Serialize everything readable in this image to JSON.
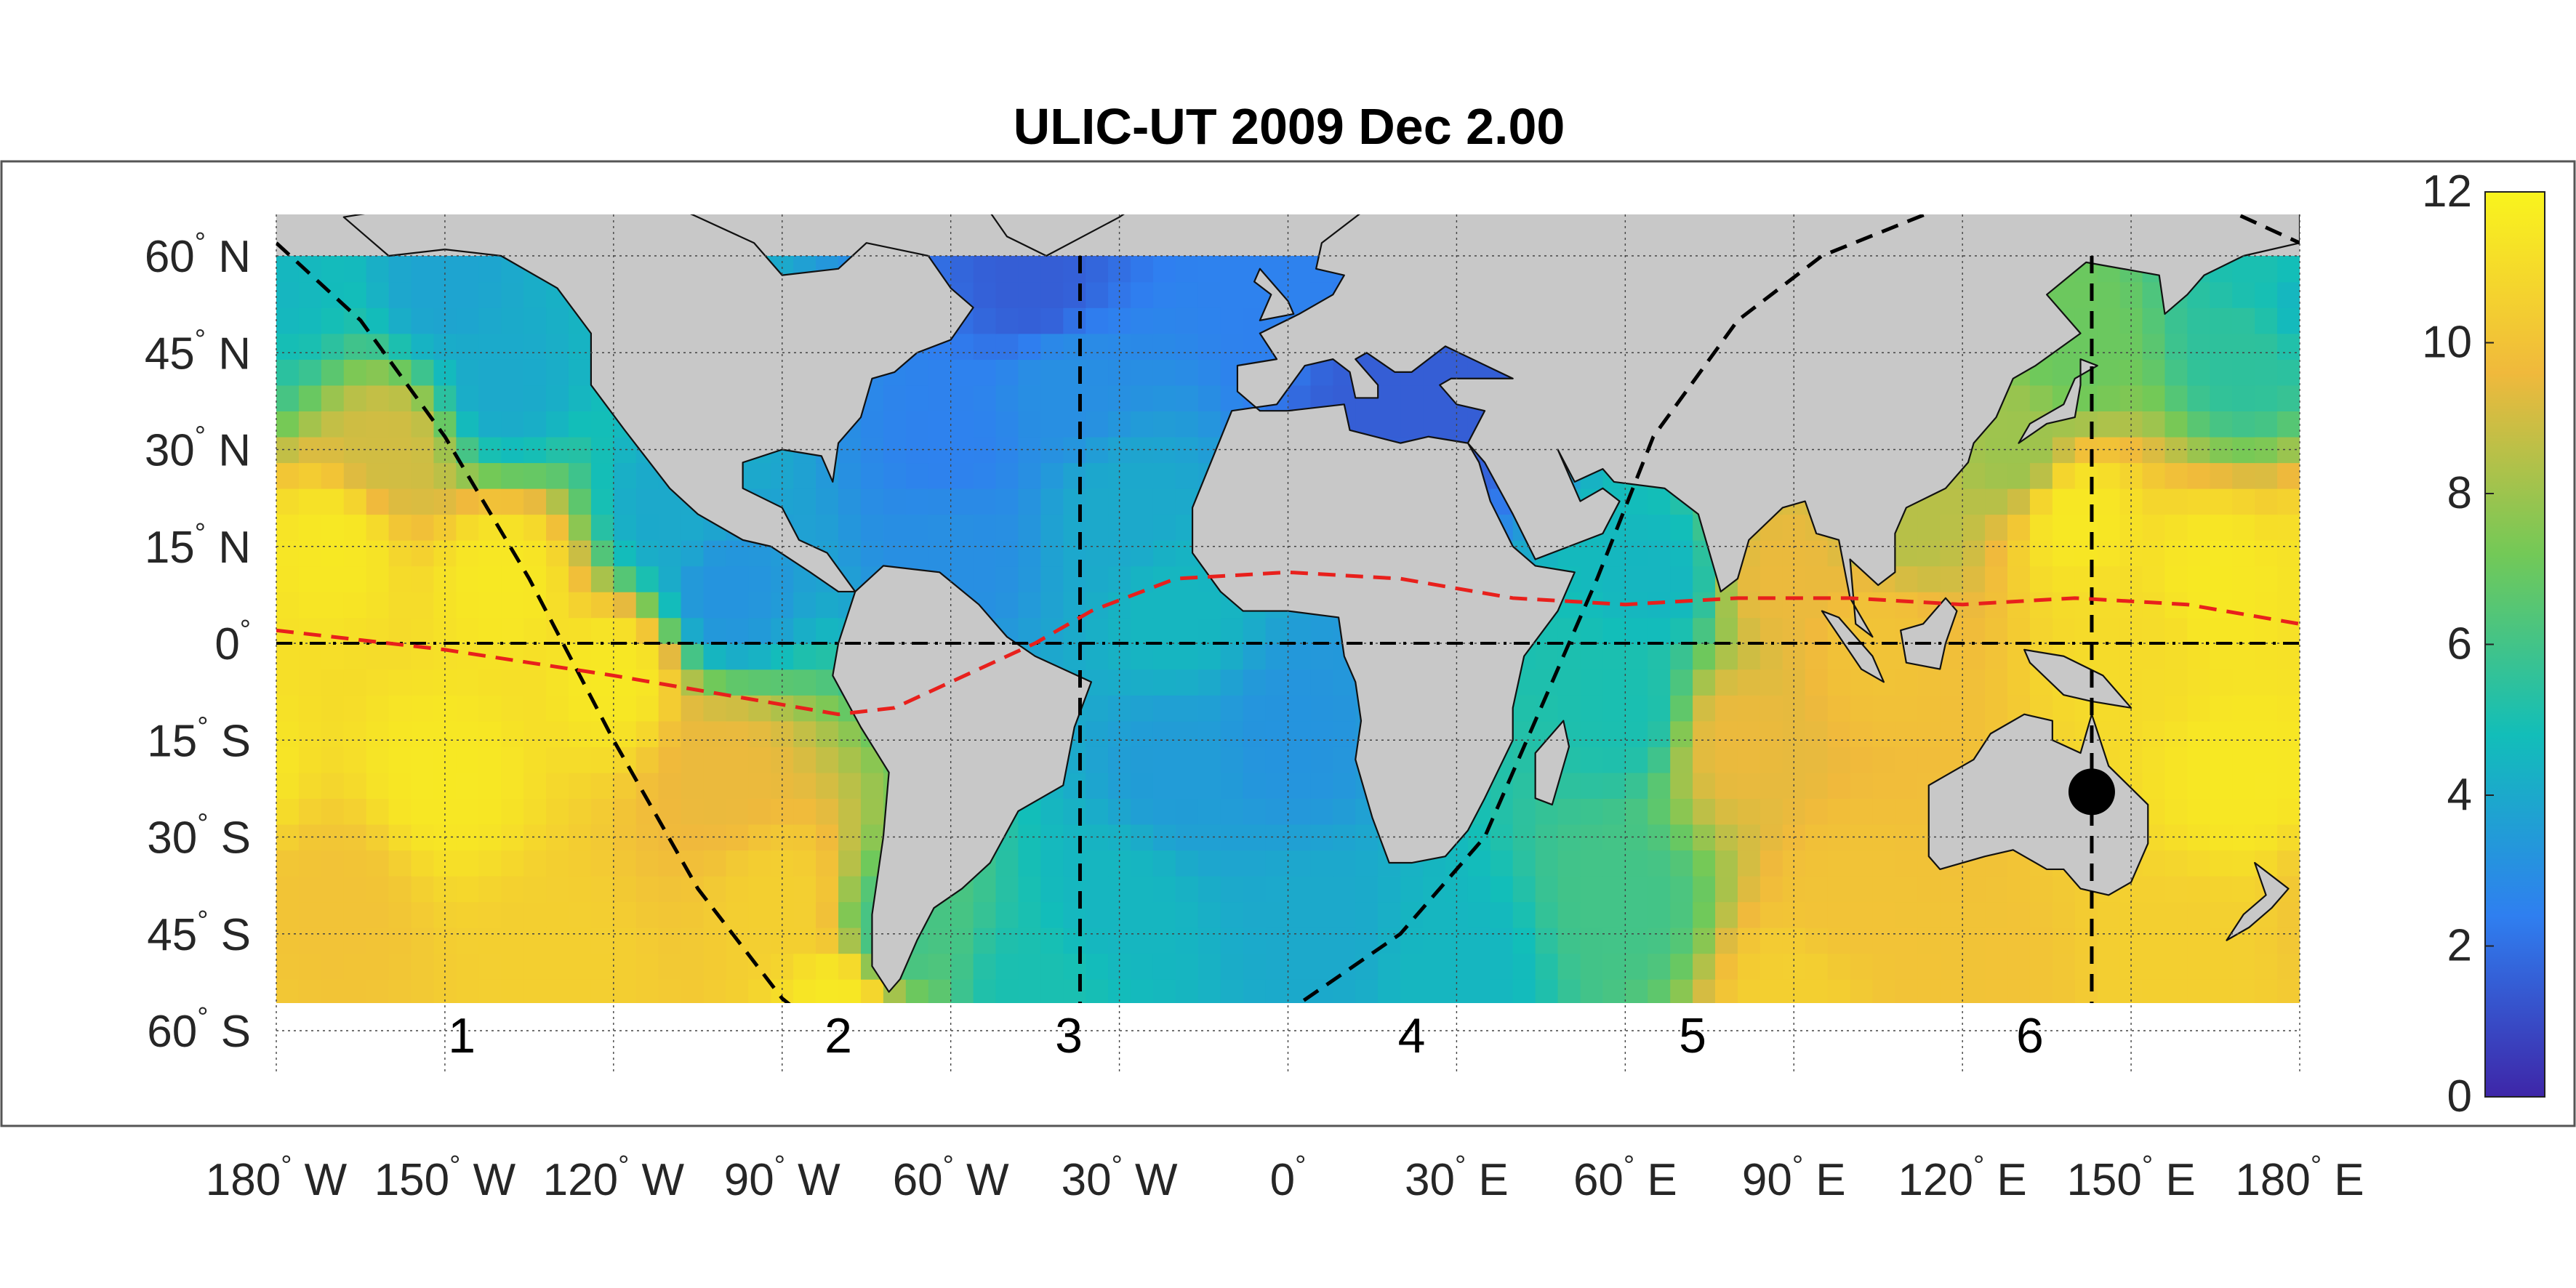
{
  "chart_data": {
    "type": "heatmap",
    "title": "ULIC-UT 2009 Dec  2.00",
    "x_ticks": [
      {
        "value": -180,
        "num": "180",
        "hemi": "W"
      },
      {
        "value": -150,
        "num": "150",
        "hemi": "W"
      },
      {
        "value": -120,
        "num": "120",
        "hemi": "W"
      },
      {
        "value": -90,
        "num": "90",
        "hemi": "W"
      },
      {
        "value": -60,
        "num": "60",
        "hemi": "W"
      },
      {
        "value": -30,
        "num": "30",
        "hemi": "W"
      },
      {
        "value": 0,
        "num": "0",
        "hemi": ""
      },
      {
        "value": 30,
        "num": "30",
        "hemi": "E"
      },
      {
        "value": 60,
        "num": "60",
        "hemi": "E"
      },
      {
        "value": 90,
        "num": "90",
        "hemi": "E"
      },
      {
        "value": 120,
        "num": "120",
        "hemi": "E"
      },
      {
        "value": 150,
        "num": "150",
        "hemi": "E"
      },
      {
        "value": 180,
        "num": "180",
        "hemi": "E"
      }
    ],
    "y_ticks": [
      {
        "value": 60,
        "num": "60",
        "hemi": "N"
      },
      {
        "value": 45,
        "num": "45",
        "hemi": "N"
      },
      {
        "value": 30,
        "num": "30",
        "hemi": "N"
      },
      {
        "value": 15,
        "num": "15",
        "hemi": "N"
      },
      {
        "value": 0,
        "num": "0",
        "hemi": ""
      },
      {
        "value": -15,
        "num": "15",
        "hemi": "S"
      },
      {
        "value": -30,
        "num": "30",
        "hemi": "S"
      },
      {
        "value": -45,
        "num": "45",
        "hemi": "S"
      },
      {
        "value": -60,
        "num": "60",
        "hemi": "S"
      }
    ],
    "xlim": [
      -180,
      180
    ],
    "ylim": [
      -60,
      60
    ],
    "grid": true,
    "colorbar": {
      "min": 0,
      "max": 12,
      "ticks": [
        "0",
        "2",
        "4",
        "6",
        "8",
        "10",
        "12"
      ],
      "colors": [
        "#3e26a8",
        "#2f7ff0",
        "#12beb9",
        "#73c957",
        "#f0b93c",
        "#f9f41d"
      ]
    },
    "land_color": "#c8c8c8",
    "region_labels": [
      {
        "text": "1",
        "lon": -147
      },
      {
        "text": "2",
        "lon": -80
      },
      {
        "text": "3",
        "lon": -39
      },
      {
        "text": "4",
        "lon": 22
      },
      {
        "text": "5",
        "lon": 72
      },
      {
        "text": "6",
        "lon": 132
      }
    ],
    "meridian_lines": [
      -37,
      143
    ],
    "marker": {
      "lon": 143,
      "lat": -23
    },
    "equator_line": {
      "color": "#000000",
      "style": "dash-dot",
      "lat": 0
    },
    "sub_solar_curve": {
      "color": "#e8201c",
      "points": [
        [
          -180,
          2
        ],
        [
          -150,
          -1
        ],
        [
          -120,
          -5
        ],
        [
          -100,
          -8
        ],
        [
          -80,
          -11
        ],
        [
          -70,
          -10
        ],
        [
          -60,
          -6
        ],
        [
          -45,
          0
        ],
        [
          -35,
          5
        ],
        [
          -20,
          10
        ],
        [
          0,
          11
        ],
        [
          20,
          10
        ],
        [
          40,
          7
        ],
        [
          60,
          6
        ],
        [
          80,
          7
        ],
        [
          100,
          7
        ],
        [
          120,
          6
        ],
        [
          140,
          7
        ],
        [
          160,
          6
        ],
        [
          180,
          3
        ]
      ]
    },
    "terminator_curves": [
      {
        "points": [
          [
            -180,
            62
          ],
          [
            -165,
            50
          ],
          [
            -150,
            32
          ],
          [
            -135,
            10
          ],
          [
            -120,
            -15
          ],
          [
            -105,
            -38
          ],
          [
            -90,
            -55
          ],
          [
            -80,
            -62
          ]
        ]
      },
      {
        "points": [
          [
            -20,
            -63
          ],
          [
            0,
            -57
          ],
          [
            20,
            -45
          ],
          [
            35,
            -30
          ],
          [
            45,
            -10
          ],
          [
            55,
            10
          ],
          [
            65,
            32
          ],
          [
            80,
            50
          ],
          [
            95,
            60
          ],
          [
            115,
            67
          ]
        ]
      },
      {
        "points": [
          [
            165,
            68
          ],
          [
            175,
            64
          ],
          [
            180,
            62
          ]
        ]
      }
    ],
    "field": {
      "description_values": "scalar 0-12 on lon/lat grid",
      "control_points": [
        {
          "lon": -180,
          "lat": 55,
          "v": 4.5
        },
        {
          "lon": -150,
          "lat": 55,
          "v": 3.8
        },
        {
          "lon": -140,
          "lat": 40,
          "v": 4
        },
        {
          "lon": -160,
          "lat": 30,
          "v": 9
        },
        {
          "lon": -170,
          "lat": 15,
          "v": 11.5
        },
        {
          "lon": -140,
          "lat": 10,
          "v": 11.5
        },
        {
          "lon": -110,
          "lat": 20,
          "v": 4
        },
        {
          "lon": -100,
          "lat": 8,
          "v": 3.2
        },
        {
          "lon": -120,
          "lat": -5,
          "v": 11.5
        },
        {
          "lon": -150,
          "lat": -20,
          "v": 11.5
        },
        {
          "lon": -170,
          "lat": -40,
          "v": 10
        },
        {
          "lon": -130,
          "lat": -50,
          "v": 10.5
        },
        {
          "lon": -100,
          "lat": -20,
          "v": 9.5
        },
        {
          "lon": -90,
          "lat": -40,
          "v": 10.5
        },
        {
          "lon": -80,
          "lat": -55,
          "v": 11.5
        },
        {
          "lon": -70,
          "lat": -45,
          "v": 6
        },
        {
          "lon": -45,
          "lat": 55,
          "v": 1.5
        },
        {
          "lon": -40,
          "lat": 40,
          "v": 3
        },
        {
          "lon": -60,
          "lat": 30,
          "v": 2.5
        },
        {
          "lon": -60,
          "lat": 15,
          "v": 3
        },
        {
          "lon": -30,
          "lat": 20,
          "v": 4
        },
        {
          "lon": -20,
          "lat": 5,
          "v": 4.5
        },
        {
          "lon": -20,
          "lat": -20,
          "v": 3.5
        },
        {
          "lon": -30,
          "lat": -40,
          "v": 4.5
        },
        {
          "lon": -45,
          "lat": -55,
          "v": 5
        },
        {
          "lon": 0,
          "lat": 55,
          "v": 2.5
        },
        {
          "lon": 0,
          "lat": -15,
          "v": 3.2
        },
        {
          "lon": 5,
          "lat": -45,
          "v": 4
        },
        {
          "lon": 30,
          "lat": -50,
          "v": 4.5
        },
        {
          "lon": 60,
          "lat": -40,
          "v": 6
        },
        {
          "lon": 60,
          "lat": -10,
          "v": 5
        },
        {
          "lon": 65,
          "lat": 10,
          "v": 4.5
        },
        {
          "lon": 88,
          "lat": 10,
          "v": 9.5
        },
        {
          "lon": 80,
          "lat": -15,
          "v": 9.5
        },
        {
          "lon": 100,
          "lat": -40,
          "v": 10
        },
        {
          "lon": 90,
          "lat": -55,
          "v": 10.5
        },
        {
          "lon": 120,
          "lat": -55,
          "v": 10
        },
        {
          "lon": 160,
          "lat": -50,
          "v": 10.5
        },
        {
          "lon": 170,
          "lat": -20,
          "v": 11.5
        },
        {
          "lon": 165,
          "lat": 10,
          "v": 11.5
        },
        {
          "lon": 140,
          "lat": 20,
          "v": 11.5
        },
        {
          "lon": 130,
          "lat": 30,
          "v": 8
        },
        {
          "lon": 140,
          "lat": 45,
          "v": 7
        },
        {
          "lon": 170,
          "lat": 45,
          "v": 5.5
        },
        {
          "lon": 175,
          "lat": 58,
          "v": 5
        },
        {
          "lon": 105,
          "lat": 0,
          "v": 10
        },
        {
          "lon": 110,
          "lat": 20,
          "v": 8.5
        },
        {
          "lon": 30,
          "lat": 38,
          "v": 1.5
        },
        {
          "lon": 15,
          "lat": 38,
          "v": 1.5
        },
        {
          "lon": 150,
          "lat": 0,
          "v": 11
        }
      ]
    }
  }
}
